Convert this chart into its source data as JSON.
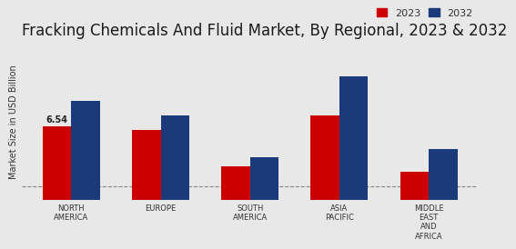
{
  "title": "Fracking Chemicals And Fluid Market, By Regional, 2023 & 2032",
  "ylabel": "Market Size in USD Billion",
  "categories": [
    "NORTH\nAMERICA",
    "EUROPE",
    "SOUTH\nAMERICA",
    "ASIA\nPACIFIC",
    "MIDDLE\nEAST\nAND\nAFRICA"
  ],
  "values_2023": [
    6.54,
    6.2,
    3.0,
    7.5,
    2.5
  ],
  "values_2032": [
    8.8,
    7.5,
    3.8,
    11.0,
    4.5
  ],
  "color_2023": "#cc0000",
  "color_2032": "#1a3a7a",
  "annotation_value": "6.54",
  "annotation_index": 0,
  "background_color": "#e8e8e8",
  "title_fontsize": 12,
  "label_fontsize": 6,
  "bar_width": 0.32,
  "legend_labels": [
    "2023",
    "2032"
  ],
  "dashed_line_y": 1.2,
  "ylim_max": 14.0
}
